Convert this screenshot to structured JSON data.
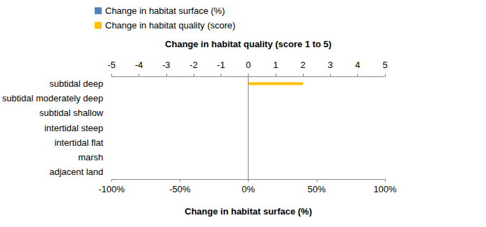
{
  "chart_data": {
    "type": "bar",
    "orientation": "horizontal",
    "categories": [
      "subtidal deep",
      "subtidal moderately deep",
      "subtidal shallow",
      "intertidal steep",
      "intertidal flat",
      "marsh",
      "adjacent land"
    ],
    "series": [
      {
        "name": "Change in habitat surface (%)",
        "color": "#4f81bd",
        "values": [
          0,
          0,
          0,
          0,
          0,
          0,
          0
        ]
      },
      {
        "name": "Change in habitat quality (score)",
        "color": "#ffc000",
        "axis": "x2",
        "values": [
          2,
          0,
          0,
          0,
          0,
          0,
          0
        ]
      }
    ],
    "x_label": "Change in habitat surface (%)",
    "xlim": [
      -100,
      100
    ],
    "xticks": [
      {
        "value": -100,
        "label": "-100%"
      },
      {
        "value": -50,
        "label": "-50%"
      },
      {
        "value": 0,
        "label": "0%"
      },
      {
        "value": 50,
        "label": "50%"
      },
      {
        "value": 100,
        "label": "100%"
      }
    ],
    "x2_label": "Change in habitat quality (score 1 to 5)",
    "x2lim": [
      -5,
      5
    ],
    "x2ticks": [
      -5,
      -4,
      -3,
      -2,
      -1,
      0,
      1,
      2,
      3,
      4,
      5
    ],
    "grid": false,
    "legend": "top-left"
  }
}
